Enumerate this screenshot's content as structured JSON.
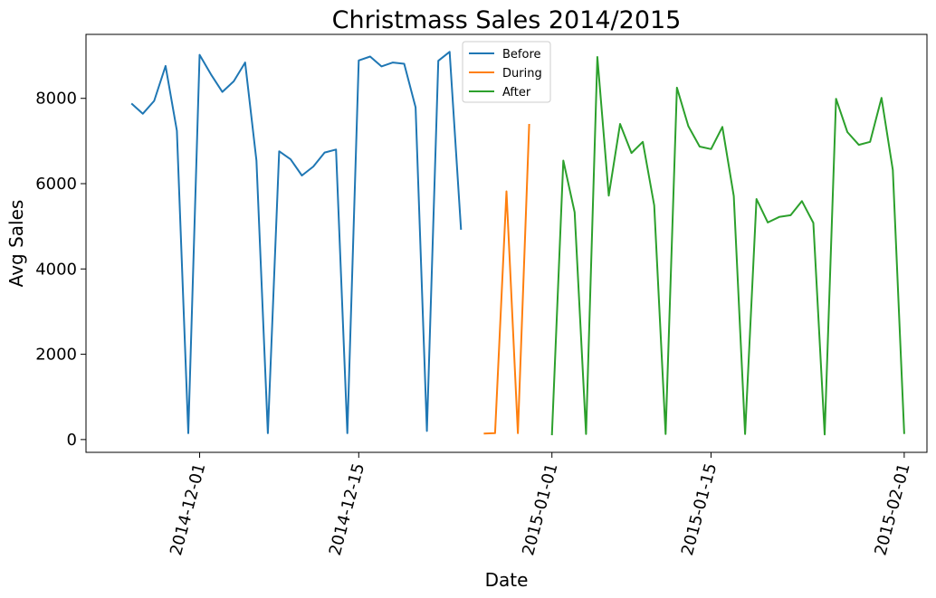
{
  "chart_data": {
    "type": "line",
    "title": "Christmass Sales 2014/2015",
    "xlabel": "Date",
    "ylabel": "Avg Sales",
    "x_axis": "date",
    "xlim": [
      "2014-11-21",
      "2015-02-03"
    ],
    "ylim": [
      -300,
      9500
    ],
    "x_ticks": [
      "2014-12-01",
      "2014-12-15",
      "2015-01-01",
      "2015-01-15",
      "2015-02-01"
    ],
    "y_ticks": [
      0,
      2000,
      4000,
      6000,
      8000
    ],
    "grid": false,
    "legend_position": "top-center",
    "series": [
      {
        "name": "Before",
        "color": "#1f77b4",
        "x": [
          "2014-11-25",
          "2014-11-26",
          "2014-11-27",
          "2014-11-28",
          "2014-11-29",
          "2014-11-30",
          "2014-12-01",
          "2014-12-02",
          "2014-12-03",
          "2014-12-04",
          "2014-12-05",
          "2014-12-06",
          "2014-12-07",
          "2014-12-08",
          "2014-12-09",
          "2014-12-10",
          "2014-12-11",
          "2014-12-12",
          "2014-12-13",
          "2014-12-14",
          "2014-12-15",
          "2014-12-16",
          "2014-12-17",
          "2014-12-18",
          "2014-12-19",
          "2014-12-20",
          "2014-12-21",
          "2014-12-22",
          "2014-12-23",
          "2014-12-24"
        ],
        "y": [
          7880,
          7640,
          7940,
          8760,
          7240,
          150,
          9020,
          8560,
          8150,
          8400,
          8840,
          6540,
          150,
          6760,
          6570,
          6190,
          6400,
          6730,
          6800,
          150,
          8890,
          8980,
          8750,
          8840,
          8810,
          7790,
          200,
          8880,
          9090,
          4920
        ]
      },
      {
        "name": "During",
        "color": "#ff7f0e",
        "x": [
          "2014-12-26",
          "2014-12-27",
          "2014-12-28",
          "2014-12-29",
          "2014-12-30"
        ],
        "y": [
          140,
          150,
          5820,
          150,
          7400
        ]
      },
      {
        "name": "After",
        "color": "#2ca02c",
        "x": [
          "2015-01-01",
          "2015-01-02",
          "2015-01-03",
          "2015-01-04",
          "2015-01-05",
          "2015-01-06",
          "2015-01-07",
          "2015-01-08",
          "2015-01-09",
          "2015-01-10",
          "2015-01-11",
          "2015-01-12",
          "2015-01-13",
          "2015-01-14",
          "2015-01-15",
          "2015-01-16",
          "2015-01-17",
          "2015-01-18",
          "2015-01-19",
          "2015-01-20",
          "2015-01-21",
          "2015-01-22",
          "2015-01-23",
          "2015-01-24",
          "2015-01-25",
          "2015-01-26",
          "2015-01-27",
          "2015-01-28",
          "2015-01-29",
          "2015-01-30",
          "2015-01-31",
          "2015-02-01"
        ],
        "y": [
          100,
          6540,
          5330,
          130,
          8970,
          5720,
          7400,
          6720,
          6980,
          5490,
          130,
          8250,
          7350,
          6870,
          6810,
          7330,
          5710,
          130,
          5640,
          5090,
          5220,
          5260,
          5590,
          5080,
          120,
          7990,
          7210,
          6910,
          6980,
          8010,
          6320,
          130
        ]
      }
    ]
  }
}
